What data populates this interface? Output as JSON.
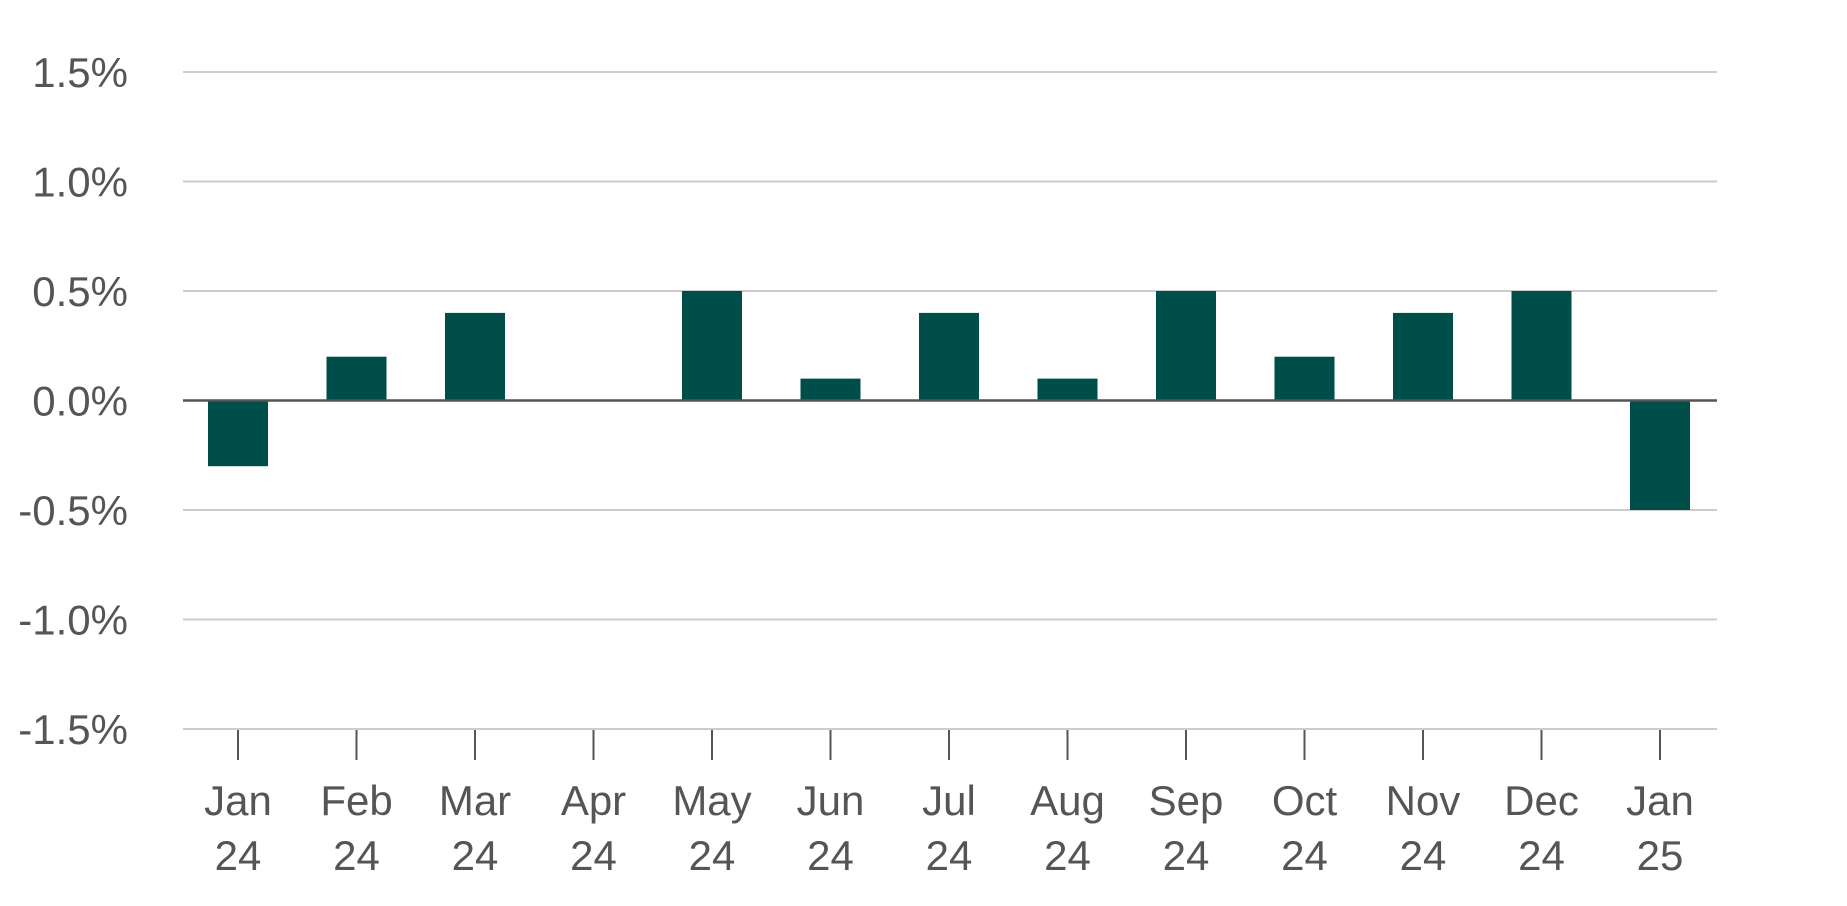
{
  "chart_data": {
    "type": "bar",
    "title": "",
    "xlabel": "",
    "ylabel": "",
    "categories": [
      [
        "Jan",
        "24"
      ],
      [
        "Feb",
        "24"
      ],
      [
        "Mar",
        "24"
      ],
      [
        "Apr",
        "24"
      ],
      [
        "May",
        "24"
      ],
      [
        "Jun",
        "24"
      ],
      [
        "Jul",
        "24"
      ],
      [
        "Aug",
        "24"
      ],
      [
        "Sep",
        "24"
      ],
      [
        "Oct",
        "24"
      ],
      [
        "Nov",
        "24"
      ],
      [
        "Dec",
        "24"
      ],
      [
        "Jan",
        "25"
      ]
    ],
    "values": [
      -0.3,
      0.2,
      0.4,
      0.0,
      0.5,
      0.1,
      0.4,
      0.1,
      0.5,
      0.2,
      0.4,
      0.5,
      -0.5
    ],
    "ylim": [
      -1.5,
      1.5
    ],
    "yticks": [
      1.5,
      1.0,
      0.5,
      0.0,
      -0.5,
      -1.0,
      -1.5
    ],
    "ytick_labels": [
      "1.5%",
      "1.0%",
      "0.5%",
      "0.0%",
      "-0.5%",
      "-1.0%",
      "-1.5%"
    ],
    "grid": true,
    "colors": {
      "bar": "#004e4a",
      "grid": "#cccccc",
      "zero_line": "#555555",
      "tick": "#555555",
      "label": "#555555"
    }
  }
}
